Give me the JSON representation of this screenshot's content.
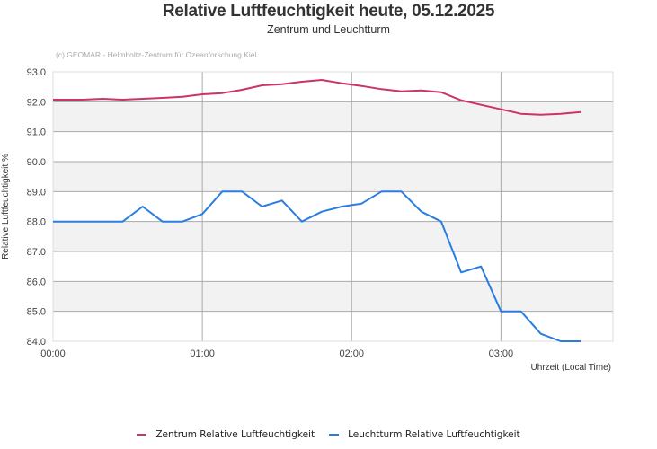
{
  "chart_data": {
    "type": "line",
    "title": "Relative Luftfeuchtigkeit heute, 05.12.2025",
    "subtitle": "Zentrum und Leuchtturm",
    "credit": "(c) GEOMAR - Helmholtz-Zentrum für Ozeanforschung Kiel",
    "xlabel": "Uhrzeit (Local Time)",
    "ylabel": "Relative Luftfeuchtigkeit %",
    "xlim": [
      "00:00",
      "03:45"
    ],
    "ylim": [
      84.0,
      93.0
    ],
    "x_ticks": [
      "00:00",
      "01:00",
      "02:00",
      "03:00"
    ],
    "y_ticks": [
      "84.0",
      "85.0",
      "86.0",
      "87.0",
      "88.0",
      "89.0",
      "90.0",
      "91.0",
      "92.0",
      "93.0"
    ],
    "grid": true,
    "legend_position": "bottom",
    "x": [
      "00:00",
      "00:04",
      "00:12",
      "00:20",
      "00:28",
      "00:36",
      "00:44",
      "00:52",
      "01:00",
      "01:08",
      "01:16",
      "01:24",
      "01:32",
      "01:40",
      "01:48",
      "01:56",
      "02:04",
      "02:12",
      "02:20",
      "02:28",
      "02:36",
      "02:44",
      "02:52",
      "03:00",
      "03:08",
      "03:16",
      "03:24",
      "03:32"
    ],
    "series": [
      {
        "name": "Zentrum Relative Luftfeuchtigkeit",
        "color": "#cc3366",
        "values": [
          92.07,
          92.07,
          92.07,
          92.1,
          92.07,
          92.1,
          92.13,
          92.17,
          92.25,
          92.29,
          92.4,
          92.55,
          92.59,
          92.67,
          92.73,
          92.62,
          92.53,
          92.42,
          92.35,
          92.38,
          92.32,
          92.05,
          91.9,
          91.75,
          91.6,
          91.57,
          91.6,
          91.66
        ]
      },
      {
        "name": "Leuchtturm Relative Luftfeuchtigkeit",
        "color": "#2a7de1",
        "values": [
          88.0,
          88.0,
          88.0,
          88.0,
          88.0,
          88.5,
          88.0,
          88.0,
          88.25,
          89.0,
          89.0,
          88.5,
          88.7,
          88.0,
          88.33,
          88.5,
          88.6,
          89.0,
          89.0,
          88.33,
          88.0,
          86.3,
          86.5,
          85.0,
          85.0,
          84.25,
          84.0,
          84.0
        ]
      }
    ]
  }
}
